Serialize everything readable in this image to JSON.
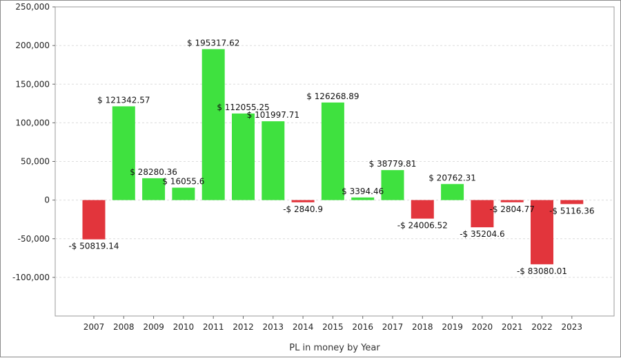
{
  "chart_data": {
    "type": "bar",
    "title": "",
    "xlabel": "PL in money by Year",
    "ylabel": "",
    "ylim": [
      -150000,
      250000
    ],
    "y_ticks": [
      250000,
      200000,
      150000,
      100000,
      50000,
      0,
      -50000,
      -100000
    ],
    "y_tick_labels": [
      "250,000",
      "200,000",
      "150,000",
      "100,000",
      "50,000",
      "0",
      "-50,000",
      "-100,000"
    ],
    "grid": true,
    "legend": "none",
    "colors": {
      "positive": "#3fe13f",
      "negative": "#e2353c"
    },
    "categories": [
      "2007",
      "2008",
      "2009",
      "2010",
      "2011",
      "2012",
      "2013",
      "2014",
      "2015",
      "2016",
      "2017",
      "2018",
      "2019",
      "2020",
      "2021",
      "2022",
      "2023"
    ],
    "values": [
      -50819.14,
      121342.57,
      28280.36,
      16055.6,
      195317.62,
      112055.25,
      101997.71,
      -2840.9,
      126268.89,
      3394.46,
      38779.81,
      -24006.52,
      20762.31,
      -35204.6,
      -2804.77,
      -83080.01,
      -5116.36
    ],
    "data_labels": [
      "-$ 50819.14",
      "$ 121342.57",
      "$ 28280.36",
      "$ 16055.6",
      "$ 195317.62",
      "$ 112055.25",
      "$ 101997.71",
      "-$ 2840.9",
      "$ 126268.89",
      "$ 3394.46",
      "$ 38779.81",
      "-$ 24006.52",
      "$ 20762.31",
      "-$ 35204.6",
      "-$ 2804.77",
      "-$ 83080.01",
      "-$ 5116.36"
    ]
  }
}
